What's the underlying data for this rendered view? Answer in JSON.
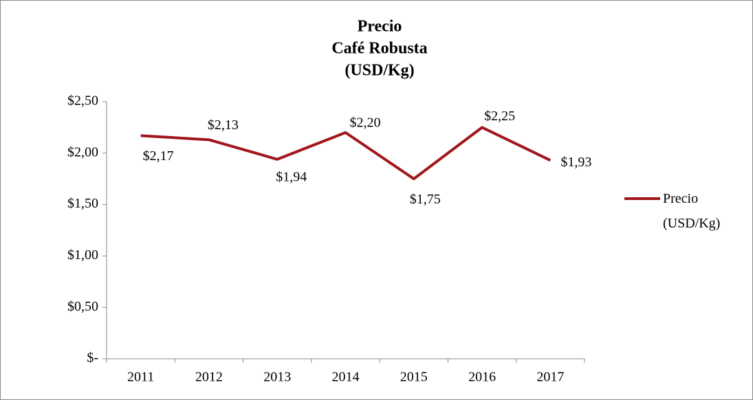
{
  "chart_data": {
    "type": "line",
    "title": [
      "Precio",
      "Café Robusta",
      "(USD/Kg)"
    ],
    "categories": [
      "2011",
      "2012",
      "2013",
      "2014",
      "2015",
      "2016",
      "2017"
    ],
    "series": [
      {
        "name": "Precio (USD/Kg)",
        "color": "#a0161b",
        "values": [
          2.17,
          2.13,
          1.94,
          2.2,
          1.75,
          2.25,
          1.93
        ],
        "value_labels": [
          "$2,17",
          "$2,13",
          "$1,94",
          "$2,20",
          "$1,75",
          "$2,25",
          "$1,93"
        ]
      }
    ],
    "ylim": [
      0,
      2.5
    ],
    "yticks": [
      {
        "value": 0,
        "label": "$-"
      },
      {
        "value": 0.5,
        "label": "$0,50"
      },
      {
        "value": 1,
        "label": "$1,00"
      },
      {
        "value": 1.5,
        "label": "$1,50"
      },
      {
        "value": 2,
        "label": "$2,00"
      },
      {
        "value": 2.5,
        "label": "$2,50"
      }
    ],
    "grid": false,
    "legend": "right"
  }
}
